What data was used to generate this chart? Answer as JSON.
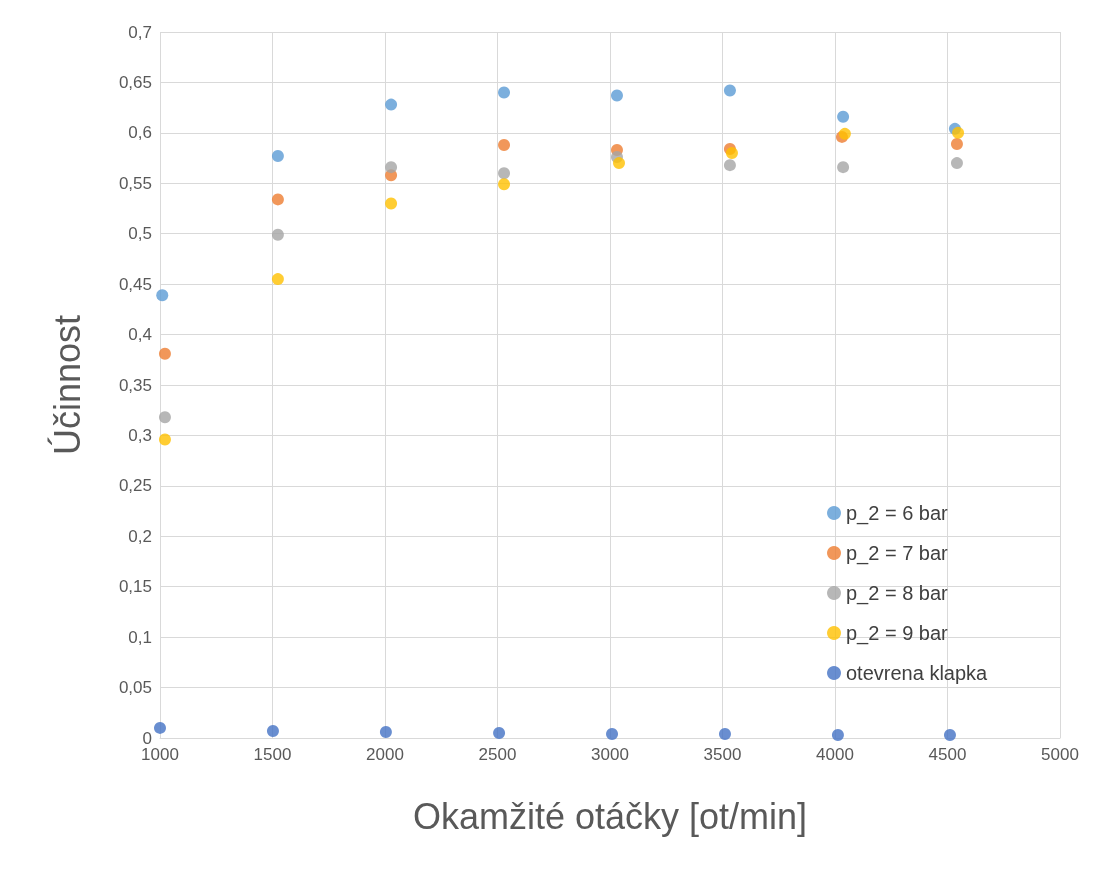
{
  "chart_data": {
    "type": "scatter",
    "xlabel": "Okamžité otáčky [ot/min]",
    "ylabel": "Účinnost",
    "xlim": [
      1000,
      5000
    ],
    "xticks": [
      1000,
      1500,
      2000,
      2500,
      3000,
      3500,
      4000,
      4500,
      5000
    ],
    "ylim": [
      0,
      0.7
    ],
    "yticks": [
      0,
      {
        "value": 0.05,
        "label": "0,05"
      },
      {
        "value": 0.1,
        "label": "0,1"
      },
      {
        "value": 0.15,
        "label": "0,15"
      },
      {
        "value": 0.2,
        "label": "0,2"
      },
      {
        "value": 0.25,
        "label": "0,25"
      },
      {
        "value": 0.3,
        "label": "0,3"
      },
      {
        "value": 0.35,
        "label": "0,35"
      },
      {
        "value": 0.4,
        "label": "0,4"
      },
      {
        "value": 0.45,
        "label": "0,45"
      },
      {
        "value": 0.5,
        "label": "0,5"
      },
      {
        "value": 0.55,
        "label": "0,55"
      },
      {
        "value": 0.6,
        "label": "0,6"
      },
      {
        "value": 0.65,
        "label": "0,65"
      },
      {
        "value": 0.7,
        "label": "0,7"
      }
    ],
    "grid": true,
    "legend": "bottom right",
    "marker": "circle",
    "series": [
      {
        "name": "p_2 = 6 bar",
        "color": "#5b9bd5",
        "x": [
          1010,
          1524,
          2027,
          2529,
          3031,
          3533,
          4036,
          4533
        ],
        "values": [
          0.439,
          0.577,
          0.628,
          0.64,
          0.637,
          0.642,
          0.616,
          0.604
        ]
      },
      {
        "name": "p_2 = 7 bar",
        "color": "#ed7d31",
        "x": [
          1022,
          1524,
          2027,
          2529,
          3031,
          3533,
          4031,
          4542
        ],
        "values": [
          0.381,
          0.534,
          0.558,
          0.588,
          0.583,
          0.584,
          0.596,
          0.589
        ]
      },
      {
        "name": "p_2 = 8 bar",
        "color": "#a5a5a5",
        "x": [
          1022,
          1524,
          2027,
          2529,
          3031,
          3533,
          4036,
          4542
        ],
        "values": [
          0.318,
          0.499,
          0.566,
          0.56,
          0.576,
          0.568,
          0.566,
          0.57
        ]
      },
      {
        "name": "p_2 = 9 bar",
        "color": "#ffc000",
        "x": [
          1022,
          1524,
          2027,
          2529,
          3040,
          3542,
          4044,
          4547
        ],
        "values": [
          0.296,
          0.455,
          0.53,
          0.549,
          0.57,
          0.58,
          0.599,
          0.6
        ]
      },
      {
        "name": "otevrena klapka",
        "color": "#4472c4",
        "x": [
          1000,
          1502,
          2004,
          2507,
          3009,
          3511,
          4013,
          4511
        ],
        "values": [
          0.01,
          0.007,
          0.006,
          0.005,
          0.004,
          0.004,
          0.003,
          0.003
        ]
      }
    ]
  }
}
